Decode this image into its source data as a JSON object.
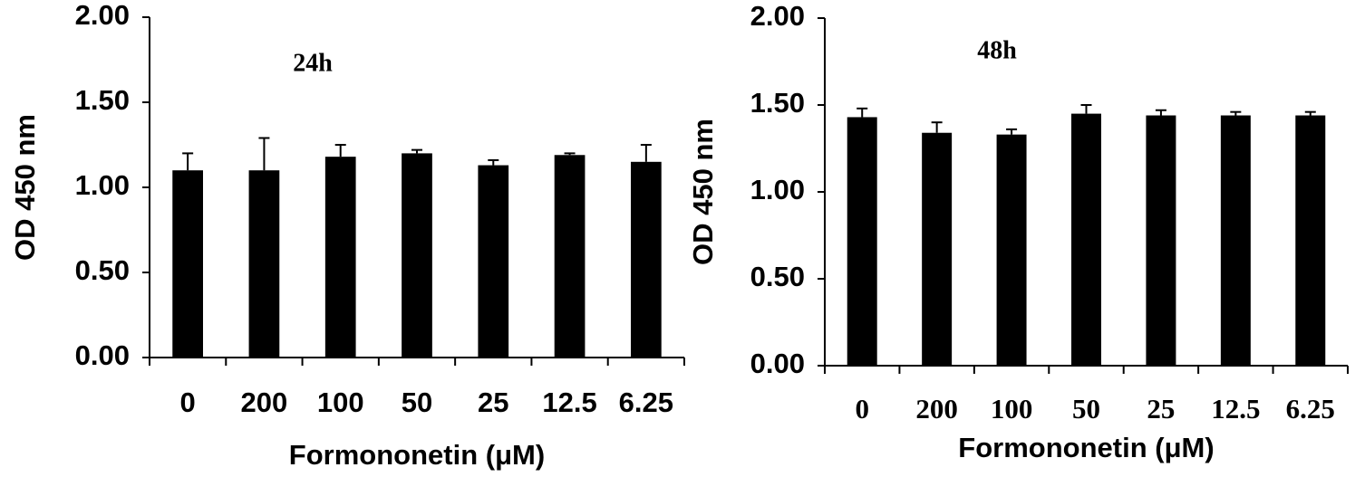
{
  "chart_data": [
    {
      "type": "bar",
      "annotation": "24h",
      "y_label": "OD 450 nm",
      "x_label": "Formononetin (μM)",
      "categories": [
        "0",
        "200",
        "100",
        "50",
        "25",
        "12.5",
        "6.25"
      ],
      "values": [
        1.1,
        1.1,
        1.18,
        1.2,
        1.13,
        1.19,
        1.15
      ],
      "errors": [
        0.1,
        0.19,
        0.07,
        0.02,
        0.03,
        0.01,
        0.1
      ],
      "color": "#000000",
      "ylim": [
        0,
        2
      ],
      "yticks": [
        {
          "value": 0,
          "label": "0.00"
        },
        {
          "value": 0.5,
          "label": "0.50"
        },
        {
          "value": 1,
          "label": "1.00"
        },
        {
          "value": 1.5,
          "label": "1.50"
        },
        {
          "value": 2,
          "label": "2.00"
        }
      ]
    },
    {
      "type": "bar",
      "annotation": "48h",
      "y_label": "OD 450 nm",
      "x_label": "Formononetin (μM)",
      "categories": [
        "0",
        "200",
        "100",
        "50",
        "25",
        "12.5",
        "6.25"
      ],
      "values": [
        1.43,
        1.34,
        1.33,
        1.45,
        1.44,
        1.44,
        1.44
      ],
      "errors": [
        0.05,
        0.06,
        0.03,
        0.05,
        0.03,
        0.02,
        0.02
      ],
      "color": "#000000",
      "ylim": [
        0,
        2
      ],
      "yticks": [
        {
          "value": 0,
          "label": "0.00"
        },
        {
          "value": 0.5,
          "label": "0.50"
        },
        {
          "value": 1,
          "label": "1.00"
        },
        {
          "value": 1.5,
          "label": "1.50"
        },
        {
          "value": 2,
          "label": "2.00"
        }
      ]
    }
  ]
}
